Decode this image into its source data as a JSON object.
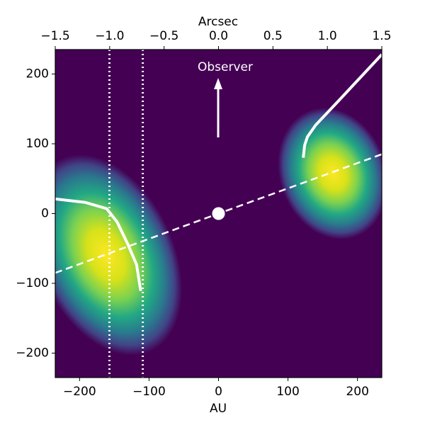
{
  "chart_data": {
    "type": "line",
    "xlabel": "AU",
    "x2label": "Arcsec",
    "xlim": [
      -235,
      235
    ],
    "ylim": [
      -235,
      235
    ],
    "x2lim": [
      -1.5,
      1.5
    ],
    "xticks": [
      {
        "value": -200,
        "label": "−200"
      },
      {
        "value": -100,
        "label": "−100"
      },
      0,
      100,
      200
    ],
    "yticks": [
      {
        "value": -200,
        "label": "−200"
      },
      {
        "value": -100,
        "label": "−100"
      },
      0,
      100,
      200
    ],
    "x2ticks": [
      {
        "value": -1.5,
        "label": "−1.5"
      },
      {
        "value": -1.0,
        "label": "−1.0"
      },
      {
        "value": -0.5,
        "label": "−0.5"
      },
      {
        "value": 0,
        "label": "0.0"
      },
      0.5,
      {
        "value": 1.0,
        "label": "1.0"
      },
      1.5
    ],
    "background": "#440154",
    "line_color": "#ffffff",
    "series": [
      {
        "x": [
          -235,
          235
        ],
        "values": [
          -85,
          85
        ],
        "dash": "dashed"
      },
      {
        "x": [
          -235,
          -192,
          -161,
          -146,
          -131,
          -118,
          -112
        ],
        "values": [
          21,
          16,
          7,
          -12,
          -43,
          -73,
          -111
        ],
        "dash": "solid"
      },
      {
        "x": [
          122,
          124,
          128,
          140,
          176,
          235
        ],
        "values": [
          80,
          98,
          110,
          127,
          165,
          228
        ],
        "dash": "solid"
      }
    ],
    "vlines": [
      -157,
      -109
    ],
    "points": {
      "x": [
        0
      ],
      "values": [
        0
      ]
    },
    "annotation": "Observer"
  }
}
